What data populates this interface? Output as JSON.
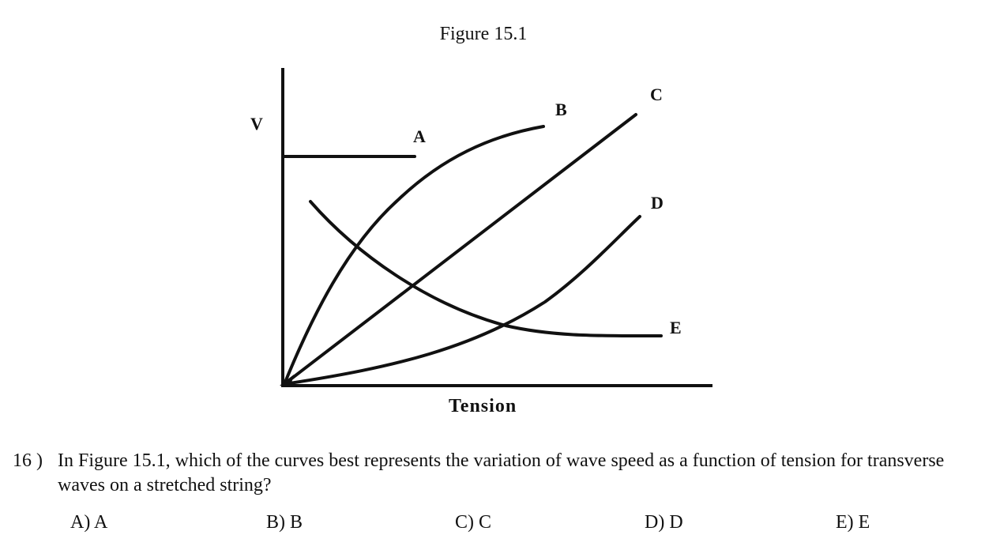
{
  "figure": {
    "title": "Figure 15.1",
    "y_axis_label": "V",
    "x_axis_label": "Tension",
    "curve_labels": [
      "A",
      "B",
      "C",
      "D",
      "E"
    ]
  },
  "chart_data": {
    "type": "line",
    "title": "Figure 15.1",
    "xlabel": "Tension",
    "ylabel": "V",
    "series": [
      {
        "name": "A",
        "shape": "constant (horizontal line)"
      },
      {
        "name": "B",
        "shape": "concave down, increasing from origin"
      },
      {
        "name": "C",
        "shape": "straight line through origin"
      },
      {
        "name": "D",
        "shape": "concave up, increasing from origin"
      },
      {
        "name": "E",
        "shape": "decreasing, leveling off"
      }
    ],
    "grid": false
  },
  "question": {
    "number": "16 )",
    "text": "In Figure 15.1, which of the curves best represents the variation of wave speed as a function of tension for transverse waves on a stretched string?",
    "choices": [
      "A) A",
      "B) B",
      "C) C",
      "D) D",
      "E) E"
    ]
  }
}
